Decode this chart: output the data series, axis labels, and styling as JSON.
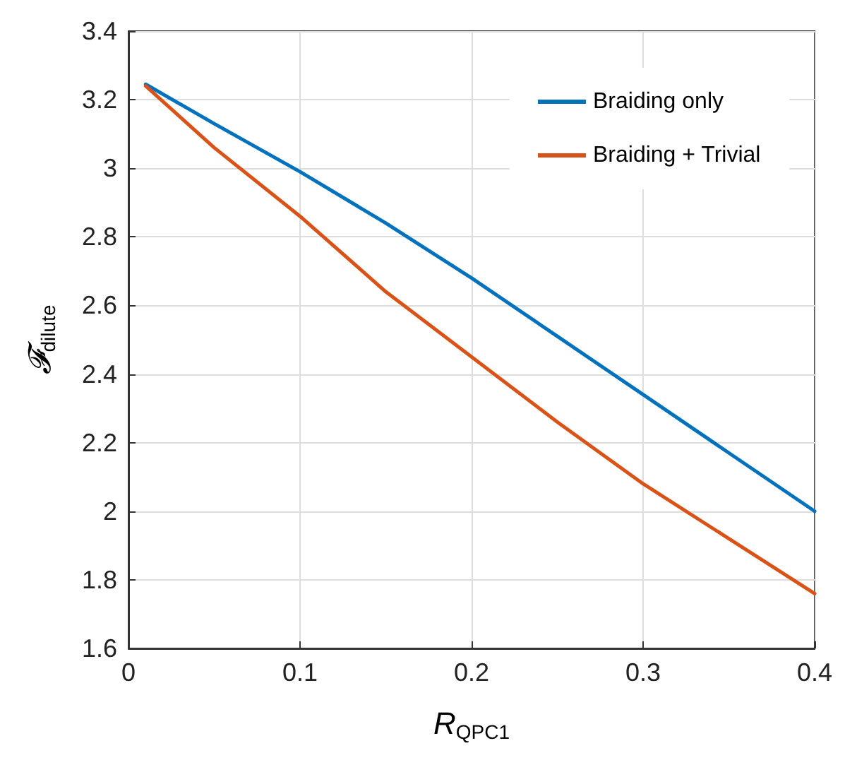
{
  "chart_data": {
    "type": "line",
    "xlabel": "R$_{QPC1}$",
    "ylabel": "𝓕$_{dilute}$",
    "x": [
      0.01,
      0.05,
      0.1,
      0.15,
      0.2,
      0.25,
      0.3,
      0.35,
      0.4
    ],
    "series": [
      {
        "name": "Braiding only",
        "color": "#0072bd",
        "values": [
          3.245,
          3.13,
          2.99,
          2.84,
          2.68,
          2.51,
          2.34,
          2.17,
          2.0
        ]
      },
      {
        "name": "Braiding + Trivial",
        "color": "#d95319",
        "values": [
          3.24,
          3.06,
          2.86,
          2.64,
          2.45,
          2.26,
          2.08,
          1.92,
          1.76
        ]
      }
    ],
    "xlim": [
      0,
      0.4
    ],
    "xticks": [
      0,
      0.1,
      0.2,
      0.3,
      0.4
    ],
    "ylim": [
      1.6,
      3.4
    ],
    "yticks": [
      1.6,
      1.8,
      2,
      2.2,
      2.4,
      2.6,
      2.8,
      3,
      3.2,
      3.4
    ],
    "grid": true,
    "legend": "top right",
    "marker": "none",
    "line_style": "solid"
  }
}
